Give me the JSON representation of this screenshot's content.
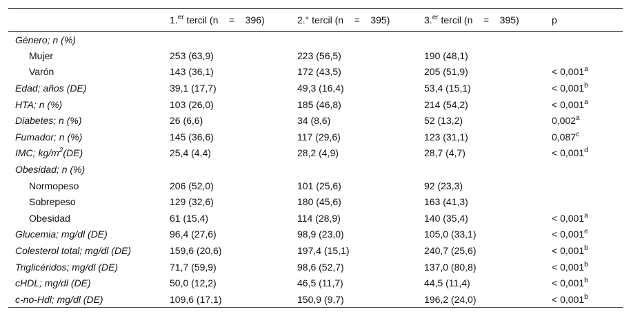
{
  "table": {
    "header": [
      {
        "text": "1.",
        "sup": "er",
        "after": " tercil (n    =    396)"
      },
      {
        "text": "2.° tercil (n    =    395)"
      },
      {
        "text": "3.",
        "sup": "er",
        "after": " tercil (n    =    395)"
      },
      {
        "text": "p"
      }
    ],
    "rows": [
      {
        "label": {
          "text": "Género; n (%)"
        },
        "items": [
          {
            "label": {
              "text": "Mujer"
            },
            "cells": [
              "253 (63,9)",
              "223 (56,5)",
              "190 (48,1)"
            ]
          },
          {
            "label": {
              "text": "Varón"
            },
            "cells": [
              "143 (36,1)",
              "172 (43,5)",
              "205 (51,9)"
            ],
            "p": {
              "text": "< 0,001",
              "sup": "a"
            }
          }
        ]
      },
      {
        "label": {
          "text": "Edad; años (DE)"
        },
        "cells": [
          "39,1 (17,7)",
          "49,3 (16,4)",
          "53,4 (15,1)"
        ],
        "p": {
          "text": "< 0,001",
          "sup": "b"
        }
      },
      {
        "label": {
          "text": "HTA; n (%)"
        },
        "cells": [
          "103 (26,0)",
          "185 (46,8)",
          "214 (54,2)"
        ],
        "p": {
          "text": "< 0,001",
          "sup": "a"
        }
      },
      {
        "label": {
          "text": "Diabetes; n (%)"
        },
        "cells": [
          "26 (6,6)",
          "34 (8,6)",
          "52 (13,2)"
        ],
        "p": {
          "text": "0,002",
          "sup": "a"
        }
      },
      {
        "label": {
          "text": "Fumador; n (%)"
        },
        "cells": [
          "145 (36,6)",
          "117 (29,6)",
          "123 (31,1)"
        ],
        "p": {
          "text": "0,087",
          "sup": "c"
        }
      },
      {
        "label": {
          "text": "IMC; kg/m",
          "sup": "2",
          "after": "(DE)"
        },
        "cells": [
          "25,4 (4,4)",
          "28,2 (4,9)",
          "28,7 (4,7)"
        ],
        "p": {
          "text": "< 0,001",
          "sup": "d"
        }
      },
      {
        "label": {
          "text": "Obesidad; n (%)"
        },
        "items": [
          {
            "label": {
              "text": "Normopeso"
            },
            "cells": [
              "206 (52,0)",
              "101 (25,6)",
              "92 (23,3)"
            ]
          },
          {
            "label": {
              "text": "Sobrepeso"
            },
            "cells": [
              "129 (32,6)",
              "180 (45,6)",
              "163 (41,3)"
            ]
          },
          {
            "label": {
              "text": "Obesidad"
            },
            "cells": [
              "61 (15,4)",
              "114 (28,9)",
              "140 (35,4)"
            ],
            "p": {
              "text": "< 0,001",
              "sup": "a"
            }
          }
        ]
      },
      {
        "label": {
          "text": "Glucemia; mg/dl (DE)"
        },
        "cells": [
          "96,4 (27,6)",
          "98,9 (23,0)",
          "105,0 (33,1)"
        ],
        "p": {
          "text": "< 0,001",
          "sup": "e"
        }
      },
      {
        "label": {
          "text": "Colesterol total; mg/dl (DE)"
        },
        "cells": [
          "159,6 (20,6)",
          "197,4 (15,1)",
          "240,7 (25,6)"
        ],
        "p": {
          "text": "< 0,001",
          "sup": "b"
        }
      },
      {
        "label": {
          "text": "Triglicéridos; mg/dl (DE)"
        },
        "cells": [
          "71,7 (59,9)",
          "98,6 (52,7)",
          "137,0 (80,8)"
        ],
        "p": {
          "text": "< 0,001",
          "sup": "b"
        }
      },
      {
        "label": {
          "text": "cHDL; mg/dl (DE)"
        },
        "cells": [
          "50,0 (12,2)",
          "46,5 (11,7)",
          "44,5 (11,4)"
        ],
        "p": {
          "text": "< 0,001",
          "sup": "b"
        }
      },
      {
        "label": {
          "text": "c-no-Hdl; mg/dl (DE)"
        },
        "cells": [
          "109,6 (17,1)",
          "150,9 (9,7)",
          "196,2 (24,0)"
        ],
        "p": {
          "text": "< 0,001",
          "sup": "b"
        }
      }
    ]
  }
}
